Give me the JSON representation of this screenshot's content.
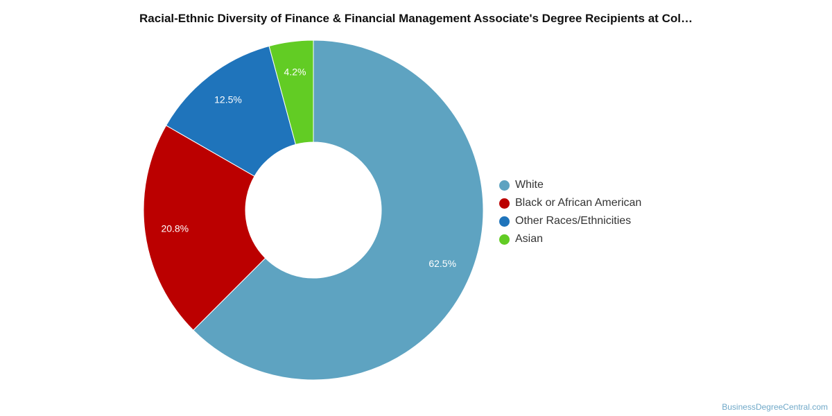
{
  "chart_data": {
    "type": "pie",
    "title": "Racial-Ethnic Diversity of Finance & Financial Management Associate's Degree Recipients at Col…",
    "donut": true,
    "legend_position": "right",
    "slices": [
      {
        "label": "White",
        "value": 62.5,
        "value_label": "62.5%",
        "color": "#5ea3c1"
      },
      {
        "label": "Black or African American",
        "value": 20.8,
        "value_label": "20.8%",
        "color": "#bb0000"
      },
      {
        "label": "Other Races/Ethnicities",
        "value": 12.5,
        "value_label": "12.5%",
        "color": "#1f74bb"
      },
      {
        "label": "Asian",
        "value": 4.2,
        "value_label": "4.2%",
        "color": "#62cc24"
      }
    ]
  },
  "footer": {
    "credit": "BusinessDegreeCentral.com"
  }
}
